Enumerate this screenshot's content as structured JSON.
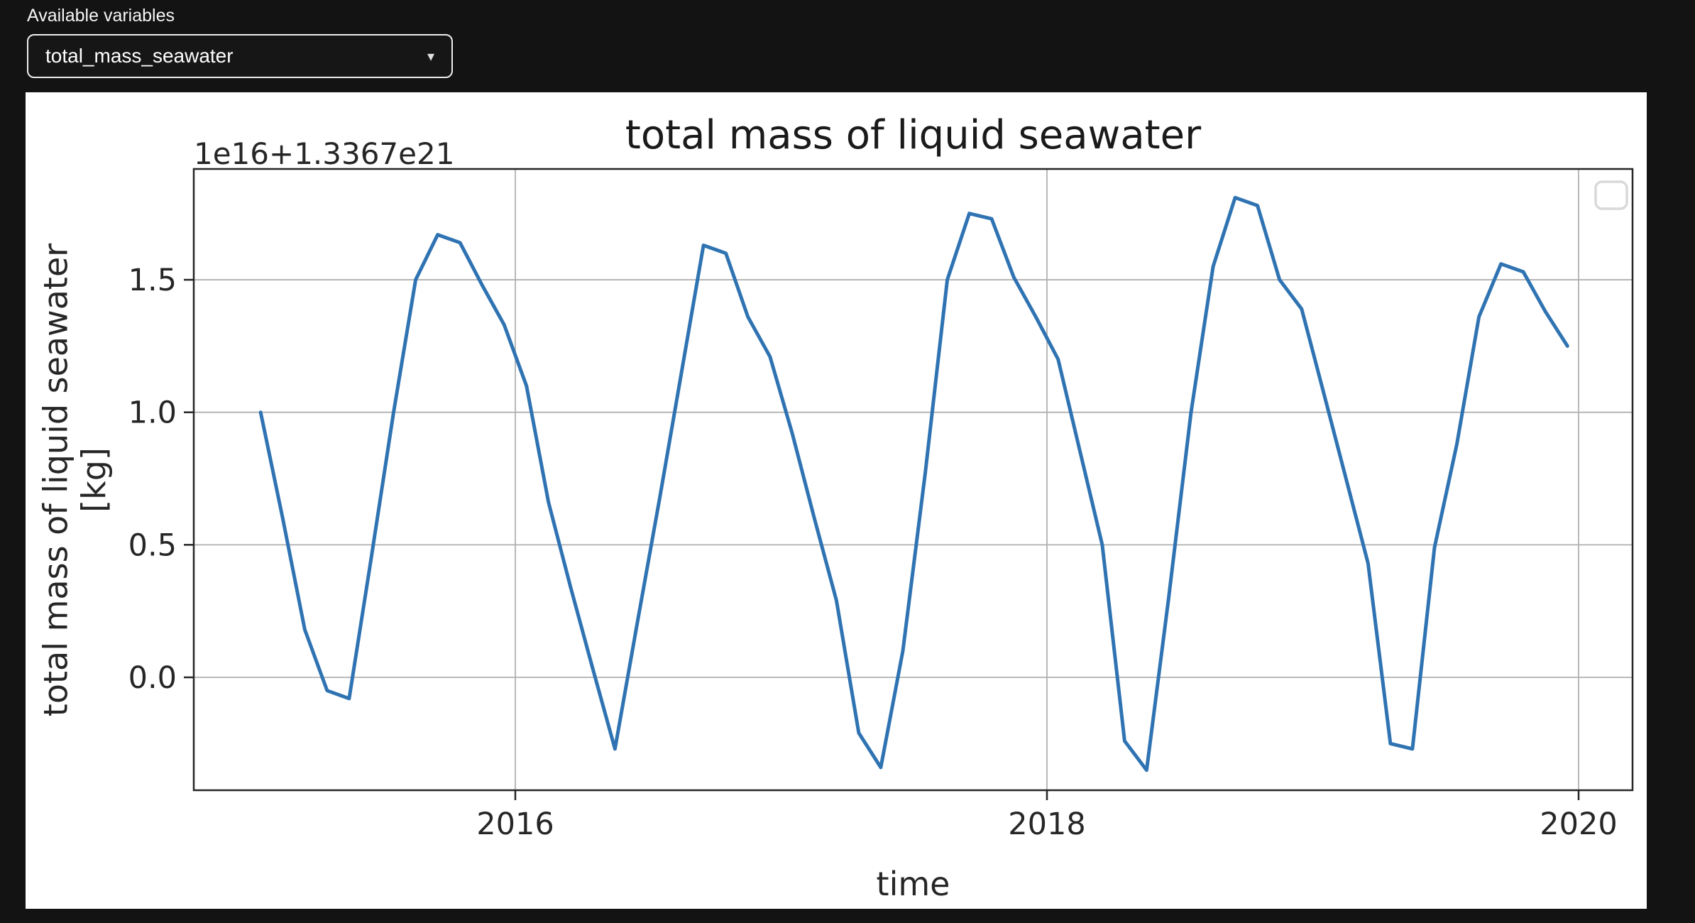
{
  "header": {
    "label": "Available variables",
    "dropdown": {
      "value": "total_mass_seawater",
      "caret": "▾"
    }
  },
  "chart_data": {
    "type": "line",
    "title": "total mass of liquid seawater",
    "offset_label": "1e16+1.3367e21",
    "xlabel": "time",
    "ylabel_line1": "total mass of liquid seawater",
    "ylabel_line2": "[kg]",
    "grid": true,
    "legend": {
      "visible": true,
      "position": "upper right",
      "entries": []
    },
    "xlim": [
      2014.79,
      2020.21
    ],
    "ylim": [
      -0.43,
      1.92
    ],
    "x_ticks": [
      {
        "label": "2016",
        "value": 2016
      },
      {
        "label": "2018",
        "value": 2018
      },
      {
        "label": "2020",
        "value": 2020
      }
    ],
    "y_ticks": [
      {
        "label": "0.0",
        "value": 0.0
      },
      {
        "label": "0.5",
        "value": 0.5
      },
      {
        "label": "1.0",
        "value": 1.0
      },
      {
        "label": "1.5",
        "value": 1.5
      }
    ],
    "colors": {
      "line": "#2f73b2",
      "grid": "#b0b0b0",
      "spine": "#262626",
      "legend_border": "#d9d9d9"
    },
    "series": [
      {
        "name": "total_mass_seawater",
        "x": [
          2015.042,
          2015.125,
          2015.208,
          2015.292,
          2015.375,
          2015.458,
          2015.542,
          2015.625,
          2015.708,
          2015.792,
          2015.875,
          2015.958,
          2016.042,
          2016.125,
          2016.208,
          2016.292,
          2016.375,
          2016.458,
          2016.542,
          2016.625,
          2016.708,
          2016.792,
          2016.875,
          2016.958,
          2017.042,
          2017.125,
          2017.208,
          2017.292,
          2017.375,
          2017.458,
          2017.542,
          2017.625,
          2017.708,
          2017.792,
          2017.875,
          2017.958,
          2018.042,
          2018.125,
          2018.208,
          2018.292,
          2018.375,
          2018.458,
          2018.542,
          2018.625,
          2018.708,
          2018.792,
          2018.875,
          2018.958,
          2019.042,
          2019.125,
          2019.208,
          2019.292,
          2019.375,
          2019.458,
          2019.542,
          2019.625,
          2019.708,
          2019.792,
          2019.875,
          2019.958
        ],
        "values": [
          1.0,
          0.6,
          0.18,
          -0.05,
          -0.08,
          0.45,
          1.0,
          1.5,
          1.67,
          1.64,
          1.48,
          1.33,
          1.1,
          0.66,
          0.34,
          0.03,
          -0.27,
          0.2,
          0.67,
          1.15,
          1.63,
          1.6,
          1.36,
          1.21,
          0.92,
          0.6,
          0.29,
          -0.21,
          -0.34,
          0.1,
          0.77,
          1.5,
          1.75,
          1.73,
          1.51,
          1.36,
          1.2,
          0.85,
          0.5,
          -0.24,
          -0.35,
          0.3,
          1.0,
          1.55,
          1.81,
          1.78,
          1.5,
          1.39,
          1.07,
          0.75,
          0.43,
          -0.25,
          -0.27,
          0.49,
          0.88,
          1.36,
          1.56,
          1.53,
          1.38,
          1.25
        ]
      }
    ]
  }
}
